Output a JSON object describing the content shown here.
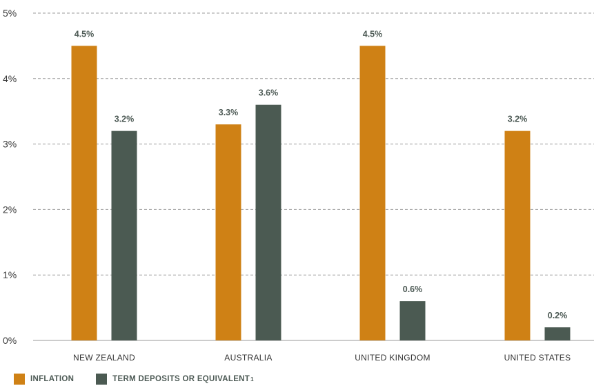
{
  "chart_data": {
    "type": "bar",
    "categories": [
      "NEW ZEALAND",
      "AUSTRALIA",
      "UNITED KINGDOM",
      "UNITED STATES"
    ],
    "series": [
      {
        "name": "INFLATION",
        "values": [
          4.5,
          3.3,
          4.5,
          3.2
        ],
        "labels": [
          "4.5%",
          "3.3%",
          "4.5%",
          "3.2%"
        ],
        "color": "#cf8115"
      },
      {
        "name": "TERM DEPOSITS OR EQUIVALENT",
        "values": [
          3.2,
          3.6,
          0.6,
          0.2
        ],
        "labels": [
          "3.2%",
          "3.6%",
          "0.6%",
          "0.2%"
        ],
        "color": "#4b5a52"
      }
    ],
    "ylim": [
      0,
      5
    ],
    "yticks": [
      "0%",
      "1%",
      "2%",
      "3%",
      "4%",
      "5%"
    ],
    "grid": true,
    "legend_position": "bottom-left",
    "legend_footnote": "1"
  }
}
